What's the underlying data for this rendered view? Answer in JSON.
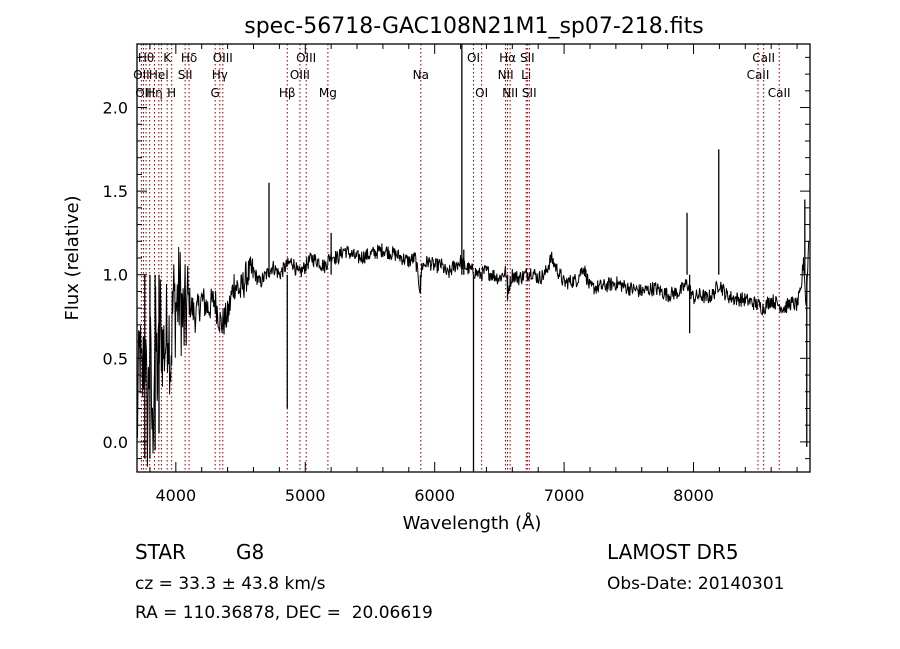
{
  "chart_data": {
    "type": "line",
    "title": "spec-56718-GAC108N21M1_sp07-218.fits",
    "xlabel": "Wavelength (Å)",
    "ylabel": "Flux (relative)",
    "xlim": [
      3700,
      8900
    ],
    "ylim": [
      -0.18,
      2.38
    ],
    "xticks": [
      4000,
      5000,
      6000,
      7000,
      8000
    ],
    "yticks": [
      0.0,
      0.5,
      1.0,
      1.5,
      2.0
    ],
    "xtick_labels": [
      "4000",
      "5000",
      "6000",
      "7000",
      "8000"
    ],
    "ytick_labels": [
      "0.0",
      "0.5",
      "1.0",
      "1.5",
      "2.0"
    ],
    "grid": false,
    "line_color": "#000000",
    "marker_color": "#8b0000",
    "series": [
      {
        "x": [
          3700,
          3720,
          3740,
          3760,
          3780,
          3800,
          3820,
          3840,
          3860,
          3880,
          3900,
          3920,
          3940,
          3960,
          3980,
          4000,
          4030,
          4060,
          4100,
          4150,
          4200,
          4250,
          4300,
          4350,
          4400,
          4450,
          4500,
          4550,
          4600,
          4650,
          4700,
          4750,
          4800,
          4850,
          4900,
          4950,
          5000,
          5050,
          5100,
          5150,
          5200,
          5250,
          5300,
          5400,
          5500,
          5600,
          5700,
          5800,
          5850,
          5890,
          5900,
          5950,
          6000,
          6050,
          6100,
          6150,
          6200,
          6250,
          6300,
          6350,
          6400,
          6450,
          6500,
          6550,
          6563,
          6600,
          6650,
          6700,
          6750,
          6800,
          6850,
          6900,
          7000,
          7100,
          7150,
          7200,
          7300,
          7400,
          7500,
          7600,
          7700,
          7800,
          7900,
          7950,
          8000,
          8050,
          8100,
          8150,
          8200,
          8250,
          8300,
          8400,
          8500,
          8540,
          8600,
          8660,
          8700,
          8750,
          8800,
          8830,
          8850,
          8870,
          8890
        ],
        "y": [
          0.05,
          0.55,
          0.3,
          0.65,
          0.1,
          0.6,
          0.0,
          0.7,
          0.35,
          0.75,
          0.55,
          0.6,
          0.75,
          0.5,
          0.85,
          0.8,
          0.9,
          0.7,
          0.85,
          0.75,
          0.85,
          0.8,
          0.85,
          0.7,
          0.75,
          0.95,
          0.9,
          1.0,
          1.02,
          0.95,
          1.0,
          1.05,
          1.0,
          1.05,
          1.08,
          1.0,
          1.05,
          1.1,
          1.08,
          1.05,
          1.12,
          1.1,
          1.15,
          1.1,
          1.12,
          1.15,
          1.12,
          1.08,
          1.1,
          0.9,
          1.05,
          1.08,
          1.05,
          1.06,
          1.0,
          1.05,
          1.08,
          1.04,
          1.02,
          1.0,
          1.02,
          1.0,
          0.98,
          1.02,
          0.9,
          1.0,
          0.98,
          1.0,
          1.02,
          0.98,
          1.0,
          1.1,
          0.95,
          0.97,
          1.05,
          0.92,
          0.93,
          0.95,
          0.92,
          0.9,
          0.92,
          0.88,
          0.9,
          0.95,
          0.86,
          0.88,
          0.86,
          0.88,
          0.95,
          0.88,
          0.86,
          0.85,
          0.82,
          0.8,
          0.85,
          0.82,
          0.8,
          0.83,
          0.82,
          0.9,
          1.1,
          0.8,
          1.2
        ]
      }
    ],
    "spikes": [
      {
        "x": 3760,
        "y": -0.1
      },
      {
        "x": 3800,
        "y": -0.1
      },
      {
        "x": 3840,
        "y": -0.05
      },
      {
        "x": 3870,
        "y": 0.05
      },
      {
        "x": 4720,
        "y": 1.55
      },
      {
        "x": 4861,
        "y": 0.2
      },
      {
        "x": 5200,
        "y": 1.25
      },
      {
        "x": 5890,
        "y": 0.9
      },
      {
        "x": 6210,
        "y": 2.38
      },
      {
        "x": 6225,
        "y": 1.15
      },
      {
        "x": 6300,
        "y": -0.18
      },
      {
        "x": 6563,
        "y": 0.85
      },
      {
        "x": 7950,
        "y": 1.37
      },
      {
        "x": 7970,
        "y": 0.65
      },
      {
        "x": 8195,
        "y": 1.75
      },
      {
        "x": 8860,
        "y": 1.45
      },
      {
        "x": 8875,
        "y": -0.03
      }
    ],
    "line_markers": [
      {
        "x": 3734,
        "label": "OII",
        "row": 2
      },
      {
        "x": 3750,
        "label": "OII",
        "row": 3
      },
      {
        "x": 3770,
        "label": "Hθ",
        "row": 1
      },
      {
        "x": 3798,
        "label": "",
        "row": 0
      },
      {
        "x": 3835,
        "label": "Hη",
        "row": 3
      },
      {
        "x": 3869,
        "label": "HeI",
        "row": 2
      },
      {
        "x": 3889,
        "label": "",
        "row": 0
      },
      {
        "x": 3933,
        "label": "K",
        "row": 1
      },
      {
        "x": 3968,
        "label": "H",
        "row": 3
      },
      {
        "x": 4072,
        "label": "SII",
        "row": 2
      },
      {
        "x": 4102,
        "label": "Hδ",
        "row": 1
      },
      {
        "x": 4304,
        "label": "G",
        "row": 3
      },
      {
        "x": 4340,
        "label": "Hγ",
        "row": 2
      },
      {
        "x": 4363,
        "label": "OIII",
        "row": 1
      },
      {
        "x": 4861,
        "label": "Hβ",
        "row": 3
      },
      {
        "x": 4959,
        "label": "OIII",
        "row": 2
      },
      {
        "x": 5007,
        "label": "OIII",
        "row": 1
      },
      {
        "x": 5175,
        "label": "Mg",
        "row": 3
      },
      {
        "x": 5893,
        "label": "Na",
        "row": 2
      },
      {
        "x": 6300,
        "label": "OI",
        "row": 1
      },
      {
        "x": 6363,
        "label": "OI",
        "row": 3
      },
      {
        "x": 6548,
        "label": "NII",
        "row": 2
      },
      {
        "x": 6563,
        "label": "Hα",
        "row": 1
      },
      {
        "x": 6583,
        "label": "NII",
        "row": 3
      },
      {
        "x": 6707,
        "label": "Li",
        "row": 2
      },
      {
        "x": 6716,
        "label": "SII",
        "row": 1
      },
      {
        "x": 6731,
        "label": "SII",
        "row": 3
      },
      {
        "x": 8498,
        "label": "CaII",
        "row": 2
      },
      {
        "x": 8542,
        "label": "CaII",
        "row": 1
      },
      {
        "x": 8662,
        "label": "CaII",
        "row": 3
      }
    ]
  },
  "info": {
    "class_label": "STAR",
    "subclass_label": "G8",
    "survey": "LAMOST DR5",
    "redshift": "cz = 33.3 ± 43.8 km/s",
    "obs_date": "Obs-Date: 20140301",
    "coords": "RA = 110.36878, DEC =  20.06619"
  }
}
